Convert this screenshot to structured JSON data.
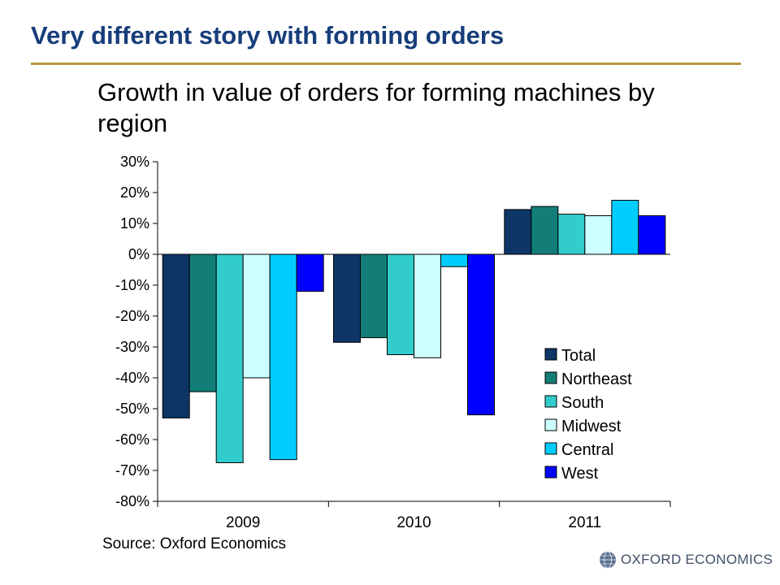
{
  "slide": {
    "title": "Very different story with forming orders",
    "source": "Source: Oxford Economics",
    "logo_text": "OXFORD ECONOMICS",
    "logo_icon": "globe-icon",
    "title_color": "#173d7a",
    "rule_color": "#b8963f"
  },
  "chart_data": {
    "type": "bar",
    "title": "Growth in value of orders for forming machines by region",
    "categories": [
      "2009",
      "2010",
      "2011"
    ],
    "series": [
      {
        "name": "Total",
        "color": "#0d3566",
        "values": [
          -53,
          -28.5,
          14.5
        ]
      },
      {
        "name": "Northeast",
        "color": "#137e78",
        "values": [
          -44.5,
          -27,
          15.5
        ]
      },
      {
        "name": "South",
        "color": "#33cccc",
        "values": [
          -67.5,
          -32.5,
          13
        ]
      },
      {
        "name": "Midwest",
        "color": "#ccffff",
        "values": [
          -40,
          -33.5,
          12.5
        ]
      },
      {
        "name": "Central",
        "color": "#00ccff",
        "values": [
          -66.5,
          -4,
          17.5
        ]
      },
      {
        "name": "West",
        "color": "#0000ff",
        "values": [
          -12,
          -52,
          12.5
        ]
      }
    ],
    "ylim": [
      -80,
      30
    ],
    "yticks": [
      "30%",
      "20%",
      "10%",
      "0%",
      "-10%",
      "-20%",
      "-30%",
      "-40%",
      "-50%",
      "-60%",
      "-70%",
      "-80%"
    ],
    "ytick_values": [
      30,
      20,
      10,
      0,
      -10,
      -20,
      -30,
      -40,
      -50,
      -60,
      -70,
      -80
    ],
    "grid": false,
    "legend_position": "bottom-right"
  }
}
